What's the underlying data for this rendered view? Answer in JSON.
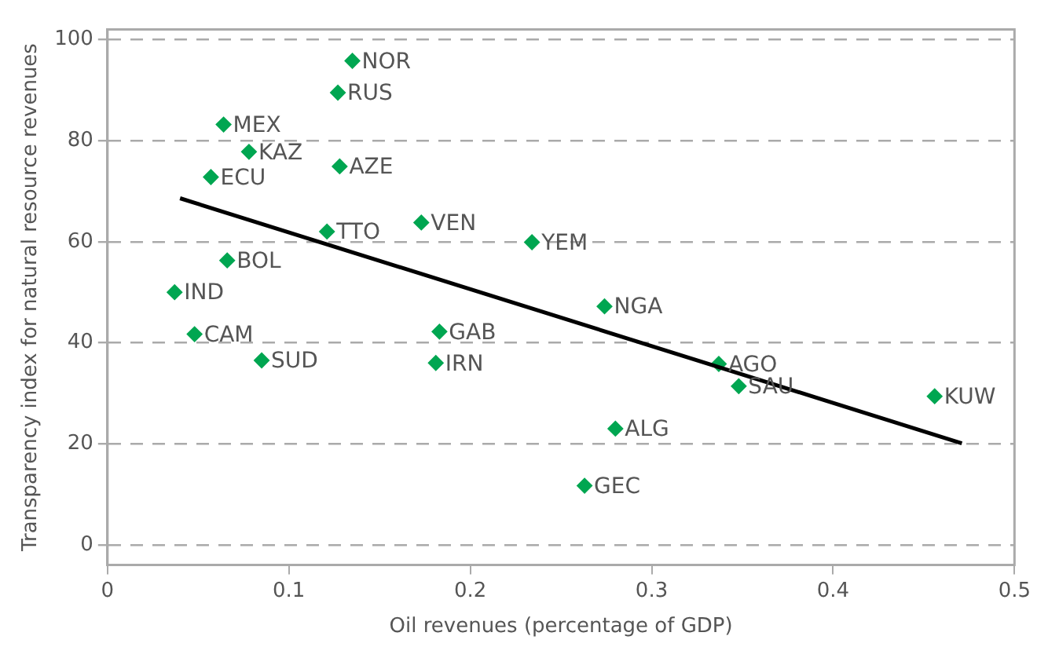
{
  "chart_data": {
    "type": "scatter",
    "xlabel": "Oil revenues (percentage of GDP)",
    "ylabel": "Transparency index for natural resource revenues",
    "xlim": [
      0,
      0.5
    ],
    "xticks": [
      0,
      0.1,
      0.2,
      0.3,
      0.4,
      0.5
    ],
    "ylim": [
      -4,
      102
    ],
    "yticks": [
      0,
      20,
      40,
      60,
      80,
      100
    ],
    "grid": "y",
    "legend": false,
    "marker": "diamond",
    "series": [
      {
        "type": "scatter",
        "color": "#00a651",
        "x": [
          0.135,
          0.127,
          0.064,
          0.078,
          0.128,
          0.057,
          0.121,
          0.173,
          0.234,
          0.066,
          0.037,
          0.048,
          0.085,
          0.183,
          0.181,
          0.274,
          0.337,
          0.348,
          0.456,
          0.28,
          0.263
        ],
        "values": [
          95.8,
          89.5,
          83.2,
          77.8,
          74.9,
          72.8,
          62,
          63.8,
          59.9,
          56.3,
          50,
          41.7,
          36.5,
          42.2,
          36,
          47.2,
          35.8,
          31.4,
          29.4,
          23,
          11.7
        ]
      },
      {
        "type": "line",
        "color": "#000000",
        "marker": "none",
        "x": [
          0.04,
          0.471
        ],
        "values": [
          68.6,
          20.1
        ]
      }
    ],
    "annotations": [
      {
        "text": "NOR",
        "x": 0.135,
        "y": 95.8
      },
      {
        "text": "RUS",
        "x": 0.127,
        "y": 89.5
      },
      {
        "text": "MEX",
        "x": 0.064,
        "y": 83.2
      },
      {
        "text": "KAZ",
        "x": 0.078,
        "y": 77.8
      },
      {
        "text": "AZE",
        "x": 0.128,
        "y": 74.9
      },
      {
        "text": "ECU",
        "x": 0.057,
        "y": 72.8
      },
      {
        "text": "TTO",
        "x": 0.121,
        "y": 62
      },
      {
        "text": "VEN",
        "x": 0.173,
        "y": 63.8
      },
      {
        "text": "YEM",
        "x": 0.234,
        "y": 59.9
      },
      {
        "text": "BOL",
        "x": 0.066,
        "y": 56.3
      },
      {
        "text": "IND",
        "x": 0.037,
        "y": 50
      },
      {
        "text": "CAM",
        "x": 0.048,
        "y": 41.7
      },
      {
        "text": "SUD",
        "x": 0.085,
        "y": 36.5
      },
      {
        "text": "GAB",
        "x": 0.183,
        "y": 42.2
      },
      {
        "text": "IRN",
        "x": 0.181,
        "y": 36
      },
      {
        "text": "NGA",
        "x": 0.274,
        "y": 47.2
      },
      {
        "text": "AGO",
        "x": 0.337,
        "y": 35.8
      },
      {
        "text": "SAU",
        "x": 0.348,
        "y": 31.4
      },
      {
        "text": "KUW",
        "x": 0.456,
        "y": 29.4
      },
      {
        "text": "ALG",
        "x": 0.28,
        "y": 23
      },
      {
        "text": "GEC",
        "x": 0.263,
        "y": 11.7
      }
    ]
  }
}
